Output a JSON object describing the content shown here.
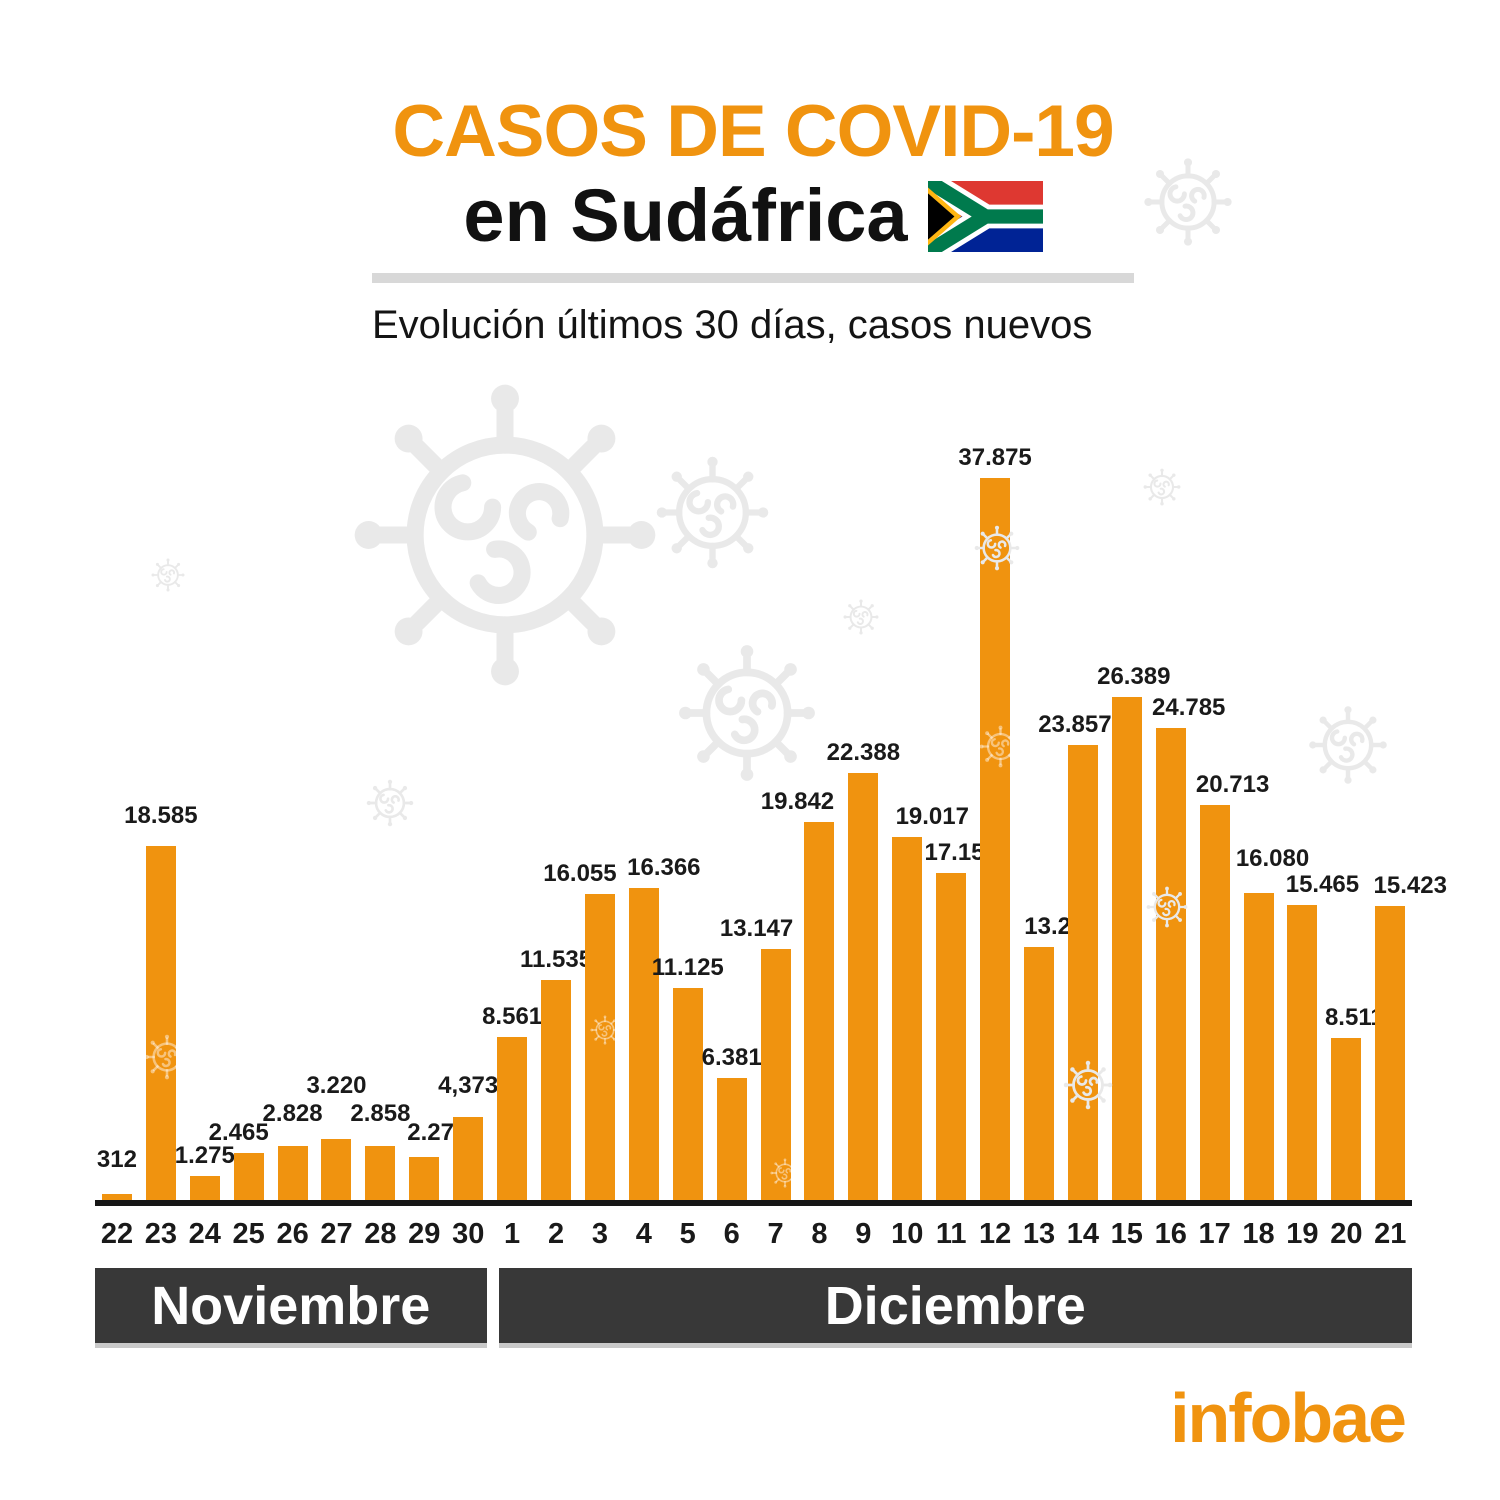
{
  "header": {
    "title_line1": "CASOS DE COVID-19",
    "title_line2": "en Sudáfrica",
    "flag_icon": "south-africa-flag",
    "tagline": "Evolución últimos 30 días, casos nuevos"
  },
  "footer": {
    "brand": "infobae"
  },
  "colors": {
    "accent_orange": "#F0930F",
    "month_band_dark": "#383838",
    "divider_gray": "#D8D8D8",
    "ghost_virus_gray": "#E9E9E9",
    "axis_black": "#161616"
  },
  "chart_data": {
    "type": "bar",
    "title": "CASOS DE COVID-19 en Sudáfrica",
    "subtitle": "Evolución últimos 30 días, casos nuevos",
    "categories": [
      "22",
      "23",
      "24",
      "25",
      "26",
      "27",
      "28",
      "29",
      "30",
      "1",
      "2",
      "3",
      "4",
      "5",
      "6",
      "7",
      "8",
      "9",
      "10",
      "11",
      "12",
      "13",
      "14",
      "15",
      "16",
      "17",
      "18",
      "19",
      "20",
      "21"
    ],
    "values": [
      312,
      18585,
      1275,
      2465,
      2828,
      3220,
      2858,
      2273,
      4373,
      8561,
      11535,
      16055,
      16366,
      11125,
      6381,
      13147,
      19842,
      22388,
      19017,
      17153,
      37875,
      13288,
      23857,
      26389,
      24785,
      20713,
      16080,
      15465,
      8511,
      15423
    ],
    "value_labels": [
      "312",
      "18.585",
      "1.275",
      "2.465",
      "2.828",
      "3.220",
      "2.858",
      "2.273",
      "4,373",
      "8.561",
      "11.535",
      "16.055",
      "16.366",
      "11.125",
      "6.381",
      "13.147",
      "19.842",
      "22.388",
      "19.017",
      "17.153",
      "37.875",
      "13.288",
      "23.857",
      "26.389",
      "24.785",
      "20.713",
      "16.080",
      "15.465",
      "8.511",
      "15.423"
    ],
    "months": [
      {
        "label": "Noviembre",
        "days": 9
      },
      {
        "label": "Diciembre",
        "days": 21
      }
    ],
    "xlabel": "",
    "ylabel": "",
    "ylim": [
      0,
      37875
    ],
    "grid": false,
    "bar_color": "#F0930F",
    "label_offsets": {
      "dx": [
        0,
        0,
        0,
        -10,
        0,
        0,
        0,
        13,
        0,
        0,
        0,
        -20,
        20,
        0,
        0,
        -19,
        -22,
        0,
        25,
        10,
        0,
        22,
        -8,
        7,
        18,
        18,
        14,
        20,
        8,
        20
      ],
      "dy": [
        14,
        10,
        0,
        0,
        12,
        33,
        12,
        4,
        11,
        0,
        0,
        0,
        0,
        0,
        0,
        0,
        0,
        0,
        0,
        0,
        0,
        0,
        0,
        0,
        0,
        0,
        14,
        0,
        0,
        0
      ]
    }
  }
}
